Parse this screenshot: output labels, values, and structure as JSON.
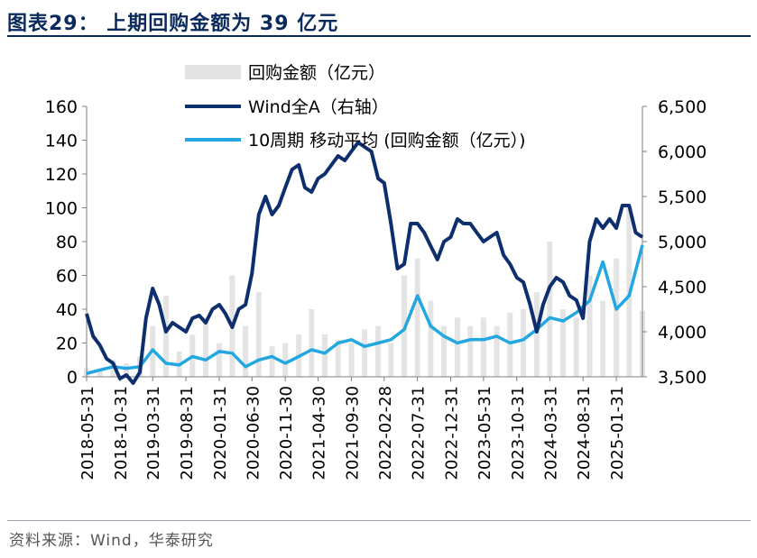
{
  "figure": {
    "title": "图表29： 上期回购金额为 39 亿元",
    "source": "资料来源：Wind，华泰研究"
  },
  "colors": {
    "title": "#0b2a5c",
    "bars": "#e4e4e4",
    "wind_line": "#0d2f6e",
    "ma_line": "#22a7e0"
  },
  "chart_data": {
    "type": "bar+line",
    "legend_position": "top",
    "grid": false,
    "x_tick_labels": [
      "2018-05-31",
      "2018-10-31",
      "2019-03-31",
      "2019-08-31",
      "2020-01-31",
      "2020-06-30",
      "2020-11-30",
      "2021-04-30",
      "2021-09-30",
      "2022-02-28",
      "2022-07-31",
      "2022-12-31",
      "2023-05-31",
      "2023-10-31",
      "2024-03-31",
      "2024-08-31",
      "2025-01-31"
    ],
    "x_range": [
      "2018-05-31",
      "2025-05-31"
    ],
    "y_left": {
      "ylim": [
        0,
        160
      ],
      "ticks": [
        0,
        20,
        40,
        60,
        80,
        100,
        120,
        140,
        160
      ],
      "tick_labels": [
        "0",
        "20",
        "40",
        "60",
        "80",
        "100",
        "120",
        "140",
        "160"
      ]
    },
    "y_right": {
      "ylim": [
        3500,
        6500
      ],
      "ticks": [
        3500,
        4000,
        4500,
        5000,
        5500,
        6000,
        6500
      ],
      "tick_labels": [
        "3,500",
        "4,000",
        "4,500",
        "5,000",
        "5,500",
        "6,000",
        "6,500"
      ]
    },
    "series": [
      {
        "name": "回购金额（亿元）",
        "type": "bar",
        "axis": "left",
        "x": [
          "2018-05-31",
          "2018-07-31",
          "2018-09-30",
          "2018-11-30",
          "2019-01-31",
          "2019-03-31",
          "2019-05-31",
          "2019-07-31",
          "2019-09-30",
          "2019-11-30",
          "2020-01-31",
          "2020-03-31",
          "2020-05-31",
          "2020-07-31",
          "2020-09-30",
          "2020-11-30",
          "2021-01-31",
          "2021-03-31",
          "2021-05-31",
          "2021-07-31",
          "2021-09-30",
          "2021-11-30",
          "2022-01-31",
          "2022-03-31",
          "2022-05-31",
          "2022-07-31",
          "2022-09-30",
          "2022-11-30",
          "2023-01-31",
          "2023-03-31",
          "2023-05-31",
          "2023-07-31",
          "2023-09-30",
          "2023-11-30",
          "2024-01-31",
          "2024-03-31",
          "2024-05-31",
          "2024-07-31",
          "2024-09-30",
          "2024-11-30",
          "2025-01-31",
          "2025-03-31",
          "2025-05-31"
        ],
        "values": [
          5,
          4,
          10,
          8,
          12,
          30,
          48,
          15,
          25,
          35,
          20,
          60,
          30,
          50,
          18,
          20,
          25,
          40,
          25,
          22,
          20,
          28,
          30,
          20,
          60,
          70,
          45,
          30,
          35,
          30,
          35,
          30,
          38,
          40,
          50,
          80,
          40,
          35,
          60,
          45,
          70,
          100,
          39
        ]
      },
      {
        "name": "Wind全A（右轴）",
        "type": "line",
        "axis": "right",
        "x": [
          "2018-05-31",
          "2018-06-30",
          "2018-07-31",
          "2018-08-31",
          "2018-09-30",
          "2018-10-31",
          "2018-11-30",
          "2018-12-31",
          "2019-01-31",
          "2019-02-28",
          "2019-03-31",
          "2019-04-30",
          "2019-05-31",
          "2019-06-30",
          "2019-07-31",
          "2019-08-31",
          "2019-09-30",
          "2019-10-31",
          "2019-11-30",
          "2019-12-31",
          "2020-01-31",
          "2020-02-29",
          "2020-03-31",
          "2020-04-30",
          "2020-05-31",
          "2020-06-30",
          "2020-07-31",
          "2020-08-31",
          "2020-09-30",
          "2020-10-31",
          "2020-11-30",
          "2020-12-31",
          "2021-01-31",
          "2021-02-28",
          "2021-03-31",
          "2021-04-30",
          "2021-05-31",
          "2021-06-30",
          "2021-07-31",
          "2021-08-31",
          "2021-09-30",
          "2021-10-31",
          "2021-11-30",
          "2021-12-31",
          "2022-01-31",
          "2022-02-28",
          "2022-03-31",
          "2022-04-30",
          "2022-05-31",
          "2022-06-30",
          "2022-07-31",
          "2022-08-31",
          "2022-09-30",
          "2022-10-31",
          "2022-11-30",
          "2022-12-31",
          "2023-01-31",
          "2023-02-28",
          "2023-03-31",
          "2023-04-30",
          "2023-05-31",
          "2023-06-30",
          "2023-07-31",
          "2023-08-31",
          "2023-09-30",
          "2023-10-31",
          "2023-11-30",
          "2023-12-31",
          "2024-01-31",
          "2024-02-29",
          "2024-03-31",
          "2024-04-30",
          "2024-05-31",
          "2024-06-30",
          "2024-07-31",
          "2024-08-31",
          "2024-09-30",
          "2024-10-31",
          "2024-11-30",
          "2024-12-31",
          "2025-01-31",
          "2025-02-28",
          "2025-03-31",
          "2025-04-30",
          "2025-05-31"
        ],
        "values": [
          4200,
          3950,
          3850,
          3700,
          3650,
          3480,
          3520,
          3430,
          3550,
          4150,
          4480,
          4300,
          4000,
          4100,
          4050,
          4000,
          4150,
          4180,
          4100,
          4250,
          4300,
          4200,
          4050,
          4250,
          4300,
          4650,
          5300,
          5500,
          5300,
          5400,
          5600,
          5800,
          5850,
          5600,
          5550,
          5700,
          5750,
          5850,
          5950,
          5900,
          6000,
          6100,
          6050,
          6000,
          5700,
          5650,
          5200,
          4700,
          4750,
          5200,
          5200,
          5100,
          4950,
          4800,
          5000,
          5050,
          5250,
          5200,
          5200,
          5100,
          5000,
          5050,
          5100,
          4850,
          4750,
          4600,
          4550,
          4300,
          4000,
          4300,
          4500,
          4600,
          4550,
          4400,
          4350,
          4150,
          5000,
          5250,
          5150,
          5250,
          5150,
          5400,
          5400,
          5100,
          5050
        ]
      },
      {
        "name": "10周期 移动平均 (回购金额（亿元）)",
        "type": "line",
        "axis": "left",
        "x": [
          "2018-05-31",
          "2018-07-31",
          "2018-09-30",
          "2018-11-30",
          "2019-01-31",
          "2019-03-31",
          "2019-05-31",
          "2019-07-31",
          "2019-09-30",
          "2019-11-30",
          "2020-01-31",
          "2020-03-31",
          "2020-05-31",
          "2020-07-31",
          "2020-09-30",
          "2020-11-30",
          "2021-01-31",
          "2021-03-31",
          "2021-05-31",
          "2021-07-31",
          "2021-09-30",
          "2021-11-30",
          "2022-01-31",
          "2022-03-31",
          "2022-05-31",
          "2022-07-31",
          "2022-09-30",
          "2022-11-30",
          "2023-01-31",
          "2023-03-31",
          "2023-05-31",
          "2023-07-31",
          "2023-09-30",
          "2023-11-30",
          "2024-01-31",
          "2024-03-31",
          "2024-05-31",
          "2024-07-31",
          "2024-09-30",
          "2024-11-30",
          "2025-01-31",
          "2025-03-31",
          "2025-05-31"
        ],
        "values": [
          2,
          4,
          6,
          5,
          6,
          16,
          8,
          7,
          12,
          10,
          15,
          14,
          6,
          10,
          12,
          8,
          12,
          16,
          14,
          20,
          22,
          18,
          20,
          22,
          28,
          48,
          30,
          24,
          20,
          22,
          22,
          24,
          20,
          22,
          28,
          35,
          33,
          38,
          45,
          68,
          40,
          48,
          78
        ]
      }
    ]
  }
}
